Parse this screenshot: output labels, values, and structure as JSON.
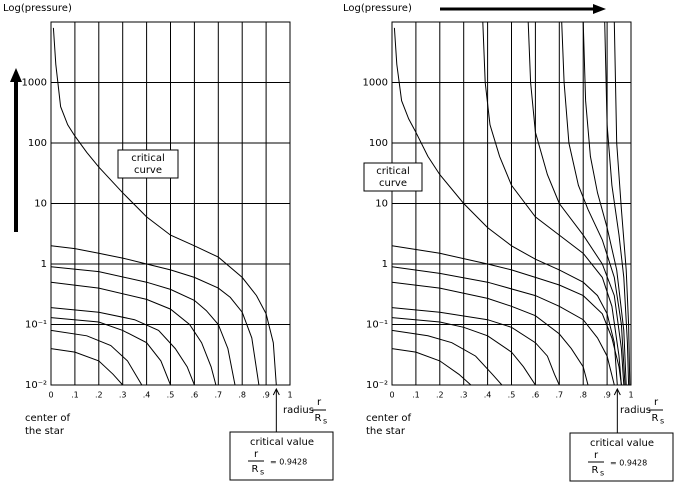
{
  "chart_data": [
    {
      "type": "line",
      "ylabel": "Log(pressure)",
      "xlabel": "radius",
      "frac_num": "r",
      "frac_den": "R",
      "frac_sub": "s",
      "origin_label": [
        "center of",
        "the star"
      ],
      "curve_label": [
        "critical",
        "curve"
      ],
      "box_title": "critical value",
      "critical_value": {
        "value": 0.9428,
        "label": "= 0.9428"
      },
      "xlim": [
        0,
        1
      ],
      "ylim": [
        0.01,
        10000
      ],
      "log_y": true,
      "grid": true,
      "xticks": [
        0,
        {
          "value": 0.1,
          "label": ".1"
        },
        {
          "value": 0.2,
          "label": ".2"
        },
        {
          "value": 0.3,
          "label": ".3"
        },
        {
          "value": 0.4,
          "label": ".4"
        },
        {
          "value": 0.5,
          "label": ".5"
        },
        {
          "value": 0.6,
          "label": ".6"
        },
        {
          "value": 0.7,
          "label": ".7"
        },
        {
          "value": 0.8,
          "label": ".8"
        },
        {
          "value": 0.9,
          "label": ".9"
        },
        1
      ],
      "yticks": [
        {
          "value": 0.01,
          "label": "10⁻²"
        },
        {
          "value": 0.1,
          "label": "10⁻¹"
        },
        1,
        10,
        100,
        1000
      ],
      "series": [
        {
          "color": "#000000",
          "x": [
            0.01,
            0.02,
            0.04,
            0.07,
            0.1,
            0.15,
            0.2,
            0.3,
            0.4,
            0.5,
            0.6,
            0.7,
            0.8,
            0.86,
            0.9,
            0.93,
            0.9428
          ],
          "values": [
            8000,
            2000,
            400,
            200,
            130,
            70,
            40,
            15,
            6,
            3,
            2,
            1.3,
            0.6,
            0.3,
            0.15,
            0.05,
            0.01
          ]
        },
        {
          "color": "#000000",
          "x": [
            0,
            0.1,
            0.2,
            0.3,
            0.4,
            0.5,
            0.6,
            0.7,
            0.75,
            0.8,
            0.84,
            0.87
          ],
          "values": [
            2,
            1.8,
            1.5,
            1.25,
            1.0,
            0.8,
            0.6,
            0.4,
            0.28,
            0.16,
            0.06,
            0.01
          ]
        },
        {
          "color": "#000000",
          "x": [
            0,
            0.2,
            0.4,
            0.5,
            0.6,
            0.65,
            0.7,
            0.74,
            0.77
          ],
          "values": [
            0.9,
            0.75,
            0.5,
            0.38,
            0.25,
            0.17,
            0.1,
            0.04,
            0.01
          ]
        },
        {
          "color": "#000000",
          "x": [
            0,
            0.2,
            0.4,
            0.5,
            0.58,
            0.63,
            0.67,
            0.69
          ],
          "values": [
            0.5,
            0.4,
            0.26,
            0.18,
            0.1,
            0.05,
            0.02,
            0.01
          ]
        },
        {
          "color": "#000000",
          "x": [
            0,
            0.2,
            0.35,
            0.45,
            0.52,
            0.57,
            0.6
          ],
          "values": [
            0.19,
            0.16,
            0.12,
            0.08,
            0.04,
            0.02,
            0.01
          ]
        },
        {
          "color": "#000000",
          "x": [
            0,
            0.2,
            0.3,
            0.4,
            0.46,
            0.5
          ],
          "values": [
            0.13,
            0.11,
            0.08,
            0.05,
            0.025,
            0.01
          ]
        },
        {
          "color": "#000000",
          "x": [
            0,
            0.15,
            0.25,
            0.32,
            0.38
          ],
          "values": [
            0.08,
            0.065,
            0.045,
            0.025,
            0.01
          ]
        },
        {
          "color": "#000000",
          "x": [
            0,
            0.1,
            0.2,
            0.26,
            0.3
          ],
          "values": [
            0.04,
            0.035,
            0.025,
            0.015,
            0.01
          ]
        }
      ]
    },
    {
      "type": "line",
      "ylabel": "Log(pressure)",
      "xlabel": "radius",
      "frac_num": "r",
      "frac_den": "R",
      "frac_sub": "s",
      "origin_label": [
        "center of",
        "the star"
      ],
      "curve_label": [
        "critical",
        "curve"
      ],
      "box_title": "critical value",
      "critical_value": {
        "value": 0.9428,
        "label": "= 0.9428"
      },
      "xlim": [
        0,
        1
      ],
      "ylim": [
        0.01,
        10000
      ],
      "log_y": true,
      "grid": true,
      "xticks": [
        0,
        {
          "value": 0.1,
          "label": ".1"
        },
        {
          "value": 0.2,
          "label": ".2"
        },
        {
          "value": 0.3,
          "label": ".3"
        },
        {
          "value": 0.4,
          "label": ".4"
        },
        {
          "value": 0.5,
          "label": ".5"
        },
        {
          "value": 0.6,
          "label": ".6"
        },
        {
          "value": 0.7,
          "label": ".7"
        },
        {
          "value": 0.8,
          "label": ".8"
        },
        {
          "value": 0.9,
          "label": ".9"
        },
        1
      ],
      "yticks": [
        {
          "value": 0.01,
          "label": "10⁻²"
        },
        {
          "value": 0.1,
          "label": "10⁻¹"
        },
        1,
        10,
        100,
        1000
      ],
      "series": [
        {
          "color": "#000000",
          "x": [
            0.01,
            0.02,
            0.04,
            0.07,
            0.1,
            0.15,
            0.2,
            0.3,
            0.4,
            0.5,
            0.6,
            0.7,
            0.8,
            0.86,
            0.9,
            0.93,
            0.9428
          ],
          "values": [
            8000,
            2000,
            500,
            250,
            150,
            60,
            30,
            10,
            4,
            2,
            1.2,
            0.8,
            0.5,
            0.3,
            0.15,
            0.05,
            0.01
          ]
        },
        {
          "color": "#000000",
          "x": [
            0.38,
            0.39,
            0.41,
            0.45,
            0.5,
            0.6,
            0.7,
            0.8,
            0.88,
            0.92,
            0.95,
            0.96
          ],
          "values": [
            10000,
            1000,
            200,
            60,
            20,
            6,
            3,
            1.5,
            0.6,
            0.2,
            0.03,
            0.01
          ]
        },
        {
          "color": "#000000",
          "x": [
            0.57,
            0.58,
            0.6,
            0.65,
            0.7,
            0.8,
            0.88,
            0.93,
            0.96,
            0.97
          ],
          "values": [
            10000,
            1000,
            150,
            30,
            10,
            3,
            1,
            0.3,
            0.04,
            0.01
          ]
        },
        {
          "color": "#000000",
          "x": [
            0.71,
            0.72,
            0.74,
            0.78,
            0.82,
            0.88,
            0.93,
            0.96,
            0.975
          ],
          "values": [
            10000,
            1000,
            100,
            20,
            8,
            2.5,
            0.6,
            0.1,
            0.01
          ]
        },
        {
          "color": "#000000",
          "x": [
            0.8,
            0.81,
            0.83,
            0.86,
            0.9,
            0.94,
            0.97,
            0.98
          ],
          "values": [
            10000,
            500,
            60,
            15,
            4,
            0.8,
            0.08,
            0.01
          ]
        },
        {
          "color": "#000000",
          "x": [
            0.89,
            0.9,
            0.92,
            0.95,
            0.97,
            0.985,
            0.99
          ],
          "values": [
            10000,
            200,
            20,
            3,
            0.6,
            0.05,
            0.01
          ]
        },
        {
          "color": "#000000",
          "x": [
            0.93,
            0.94,
            0.96,
            0.98,
            0.99,
            0.995
          ],
          "values": [
            10000,
            100,
            8,
            0.8,
            0.1,
            0.01
          ]
        },
        {
          "color": "#000000",
          "x": [
            0,
            0.2,
            0.4,
            0.5,
            0.6,
            0.7,
            0.8,
            0.88,
            0.92,
            0.95,
            0.96
          ],
          "values": [
            2,
            1.5,
            1,
            0.8,
            0.6,
            0.45,
            0.3,
            0.15,
            0.06,
            0.02,
            0.01
          ]
        },
        {
          "color": "#000000",
          "x": [
            0,
            0.2,
            0.4,
            0.6,
            0.7,
            0.8,
            0.86,
            0.9,
            0.93
          ],
          "values": [
            0.9,
            0.7,
            0.5,
            0.3,
            0.2,
            0.12,
            0.06,
            0.03,
            0.01
          ]
        },
        {
          "color": "#000000",
          "x": [
            0,
            0.2,
            0.4,
            0.5,
            0.6,
            0.7,
            0.75,
            0.8,
            0.82
          ],
          "values": [
            0.5,
            0.4,
            0.27,
            0.2,
            0.14,
            0.07,
            0.04,
            0.02,
            0.01
          ]
        },
        {
          "color": "#000000",
          "x": [
            0,
            0.2,
            0.4,
            0.5,
            0.6,
            0.65,
            0.68,
            0.7
          ],
          "values": [
            0.19,
            0.16,
            0.12,
            0.09,
            0.05,
            0.03,
            0.015,
            0.01
          ]
        },
        {
          "color": "#000000",
          "x": [
            0,
            0.2,
            0.3,
            0.4,
            0.5,
            0.55,
            0.6
          ],
          "values": [
            0.13,
            0.11,
            0.09,
            0.065,
            0.035,
            0.02,
            0.01
          ]
        },
        {
          "color": "#000000",
          "x": [
            0,
            0.15,
            0.25,
            0.35,
            0.42,
            0.46
          ],
          "values": [
            0.08,
            0.065,
            0.05,
            0.03,
            0.015,
            0.01
          ]
        },
        {
          "color": "#000000",
          "x": [
            0,
            0.1,
            0.2,
            0.28,
            0.33
          ],
          "values": [
            0.04,
            0.035,
            0.025,
            0.015,
            0.01
          ]
        }
      ]
    }
  ]
}
